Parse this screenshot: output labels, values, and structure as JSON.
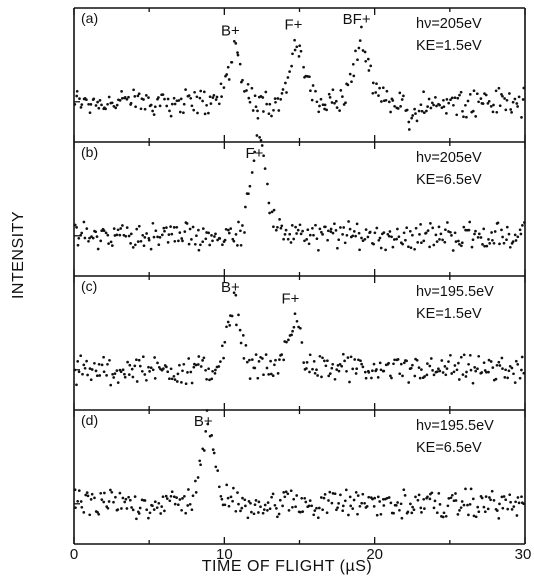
{
  "chart_data": {
    "type": "scatter",
    "xlabel": "TIME OF FLIGHT (µS)",
    "ylabel": "INTENSITY",
    "xlim": [
      0,
      30
    ],
    "x_ticks": [
      "0",
      "10",
      "20",
      "30"
    ],
    "panels": [
      {
        "label": "(a)",
        "info": [
          "hν=205eV",
          "KE=1.5eV"
        ],
        "peaks": [
          {
            "name": "B+",
            "x": 10.6,
            "height": 0.45
          },
          {
            "name": "F+",
            "x": 14.8,
            "height": 0.5
          },
          {
            "name": "BF+",
            "x": 19.0,
            "height": 0.55
          }
        ],
        "baseline_note": "dip near 22.5"
      },
      {
        "label": "(b)",
        "info": [
          "hν=205eV",
          "KE=6.5eV"
        ],
        "peaks": [
          {
            "name": "F+",
            "x": 12.2,
            "height": 1.0
          }
        ]
      },
      {
        "label": "(c)",
        "info": [
          "hν=195.5eV",
          "KE=1.5eV"
        ],
        "peaks": [
          {
            "name": "B+",
            "x": 10.6,
            "height": 0.55
          },
          {
            "name": "F+",
            "x": 14.6,
            "height": 0.45
          }
        ]
      },
      {
        "label": "(d)",
        "info": [
          "hν=195.5eV",
          "KE=6.5eV"
        ],
        "peaks": [
          {
            "name": "B+",
            "x": 8.8,
            "height": 0.7
          }
        ]
      }
    ]
  }
}
